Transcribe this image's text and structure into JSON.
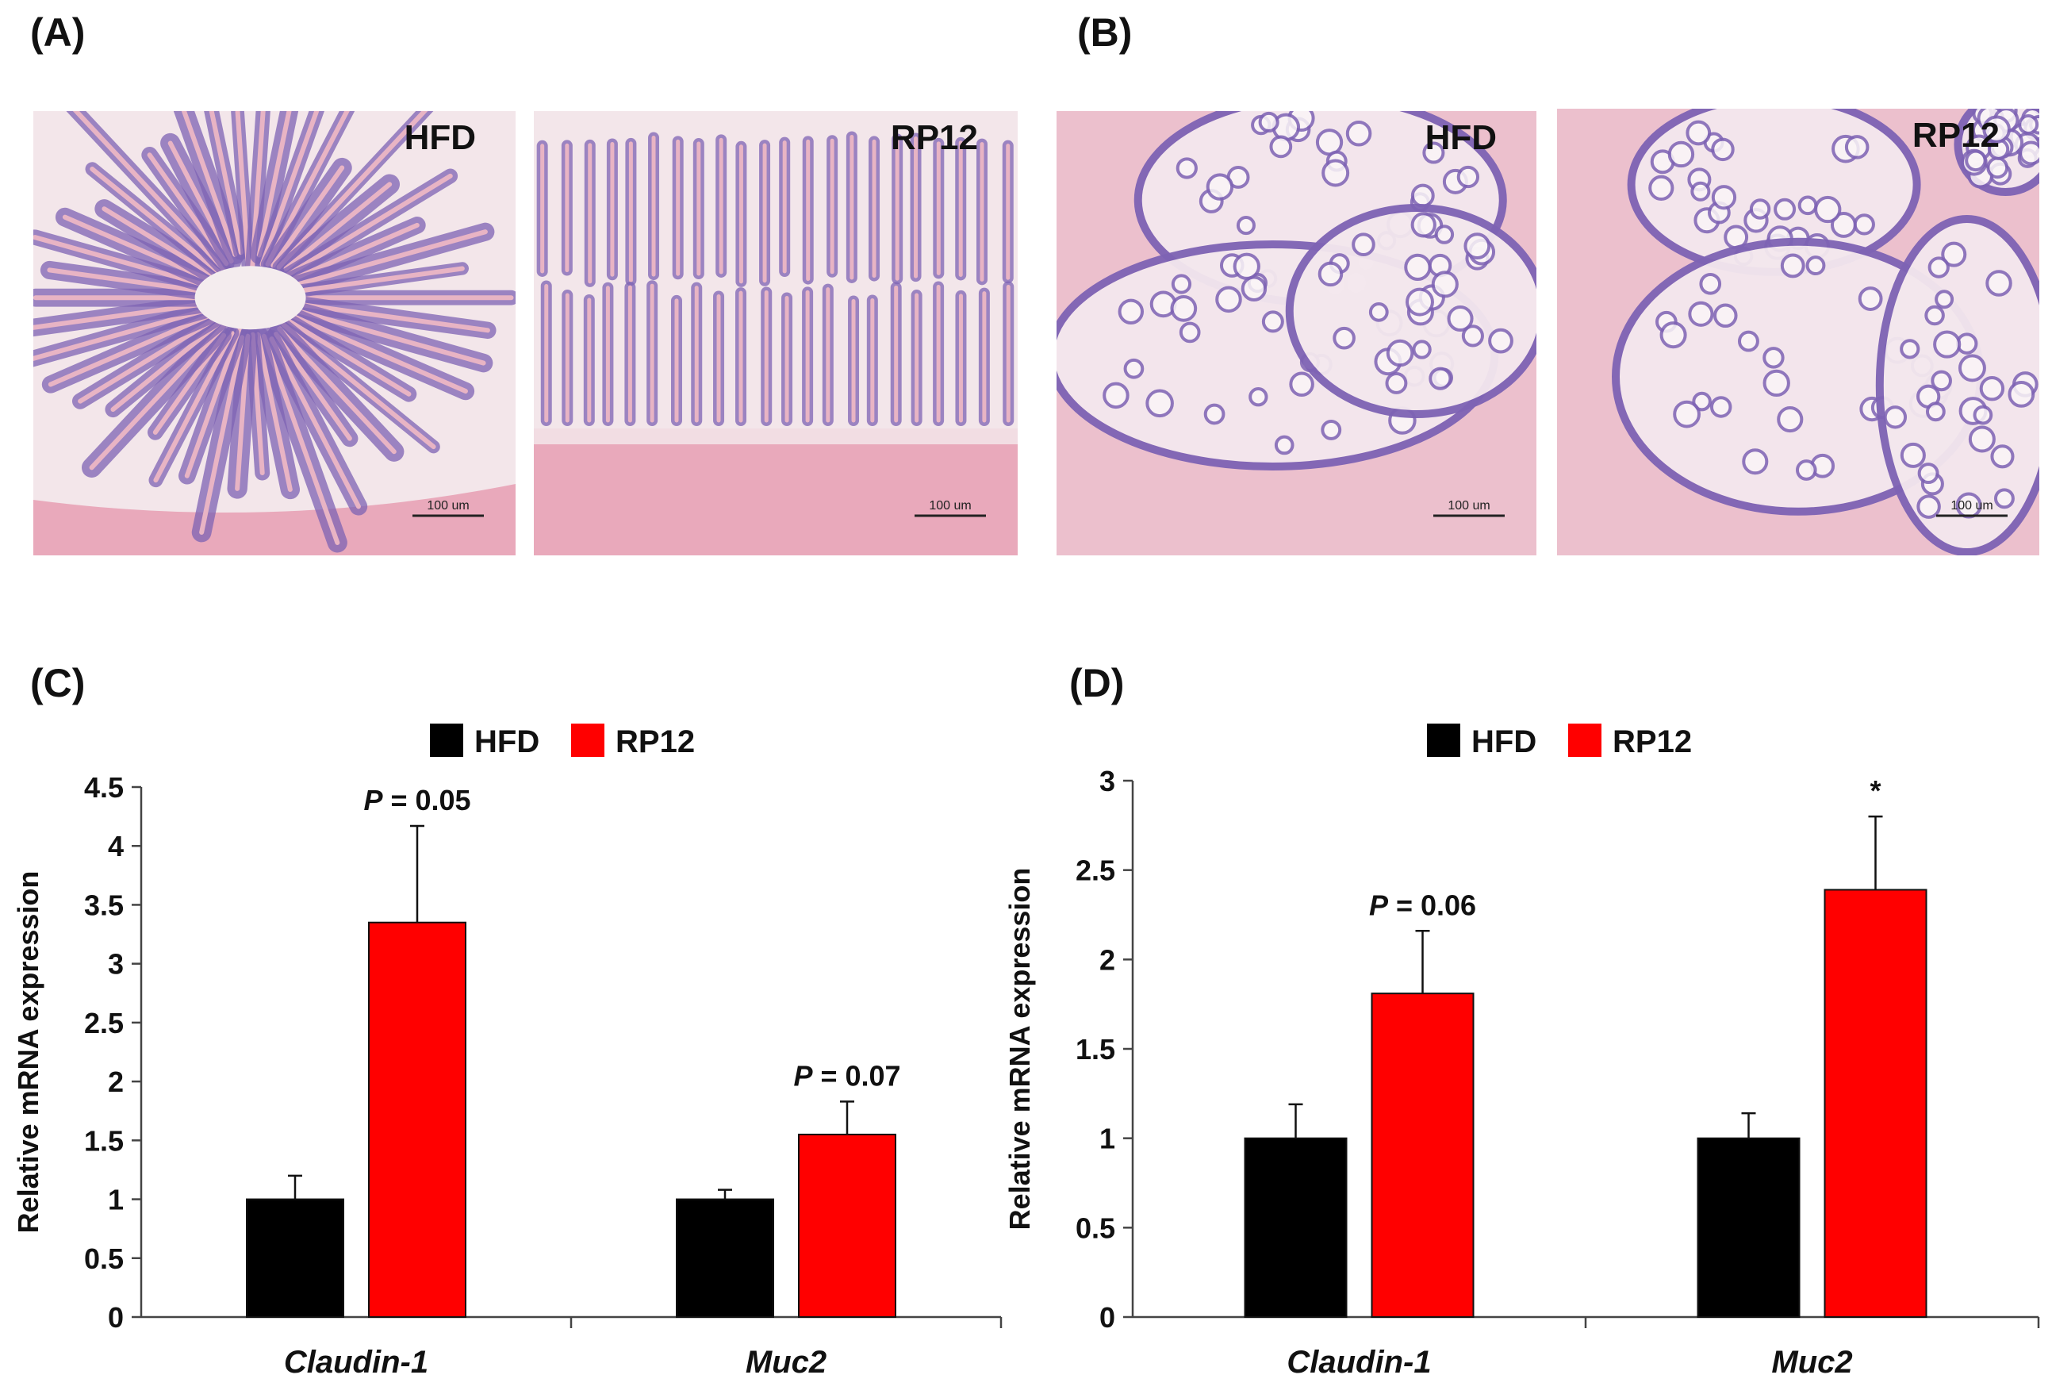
{
  "panels": {
    "A": {
      "letter": "(A)",
      "images": [
        {
          "label": "HFD",
          "scale_bar": "100 um",
          "tissue": "small-intestine-villi"
        },
        {
          "label": "RP12",
          "scale_bar": "100 um",
          "tissue": "small-intestine-villi-parallel"
        }
      ]
    },
    "B": {
      "letter": "(B)",
      "images": [
        {
          "label": "HFD",
          "scale_bar": "100 um",
          "tissue": "colon-crypts"
        },
        {
          "label": "RP12",
          "scale_bar": "100 um",
          "tissue": "colon-crypts"
        }
      ]
    },
    "C": {
      "letter": "(C)"
    },
    "D": {
      "letter": "(D)"
    }
  },
  "colors": {
    "hfd": "#000000",
    "rp12": "#ff0000",
    "he_stain_background": "#f3e6ea",
    "he_nuclei": "#7e63b4",
    "he_eosin": "#e8b4c4"
  },
  "chart_data": [
    {
      "panel": "C",
      "type": "bar",
      "categories": [
        "Claudin-1",
        "Muc2"
      ],
      "series": [
        {
          "name": "HFD",
          "values": [
            1.0,
            1.0
          ],
          "errors": [
            0.2,
            0.08
          ]
        },
        {
          "name": "RP12",
          "values": [
            3.35,
            1.55
          ],
          "errors": [
            0.82,
            0.28
          ]
        }
      ],
      "ylabel": "Relative mRNA expression",
      "ylim": [
        0,
        4.5
      ],
      "yticks": [
        0,
        0.5,
        1,
        1.5,
        2,
        2.5,
        3,
        3.5,
        4,
        4.5
      ],
      "ytick_labels": [
        "0",
        "0.5",
        "1",
        "1.5",
        "2",
        "2.5",
        "3",
        "3.5",
        "4",
        "4.5"
      ],
      "legend": [
        "HFD",
        "RP12"
      ],
      "legend_position": "top",
      "annotations": [
        {
          "category": "Claudin-1",
          "p_symbol": "P",
          "text": " = 0.05"
        },
        {
          "category": "Muc2",
          "p_symbol": "P",
          "text": " = 0.07"
        }
      ]
    },
    {
      "panel": "D",
      "type": "bar",
      "categories": [
        "Claudin-1",
        "Muc2"
      ],
      "series": [
        {
          "name": "HFD",
          "values": [
            1.0,
            1.0
          ],
          "errors": [
            0.19,
            0.14
          ]
        },
        {
          "name": "RP12",
          "values": [
            1.81,
            2.39
          ],
          "errors": [
            0.35,
            0.41
          ]
        }
      ],
      "ylabel": "Relative mRNA expression",
      "ylim": [
        0,
        3
      ],
      "yticks": [
        0,
        0.5,
        1,
        1.5,
        2,
        2.5,
        3
      ],
      "ytick_labels": [
        "0",
        "0.5",
        "1",
        "1.5",
        "2",
        "2.5",
        "3"
      ],
      "legend": [
        "HFD",
        "RP12"
      ],
      "legend_position": "top",
      "annotations": [
        {
          "category": "Claudin-1",
          "p_symbol": "P",
          "text": " = 0.06"
        },
        {
          "category": "Muc2",
          "p_symbol": "",
          "text": "*"
        }
      ]
    }
  ]
}
